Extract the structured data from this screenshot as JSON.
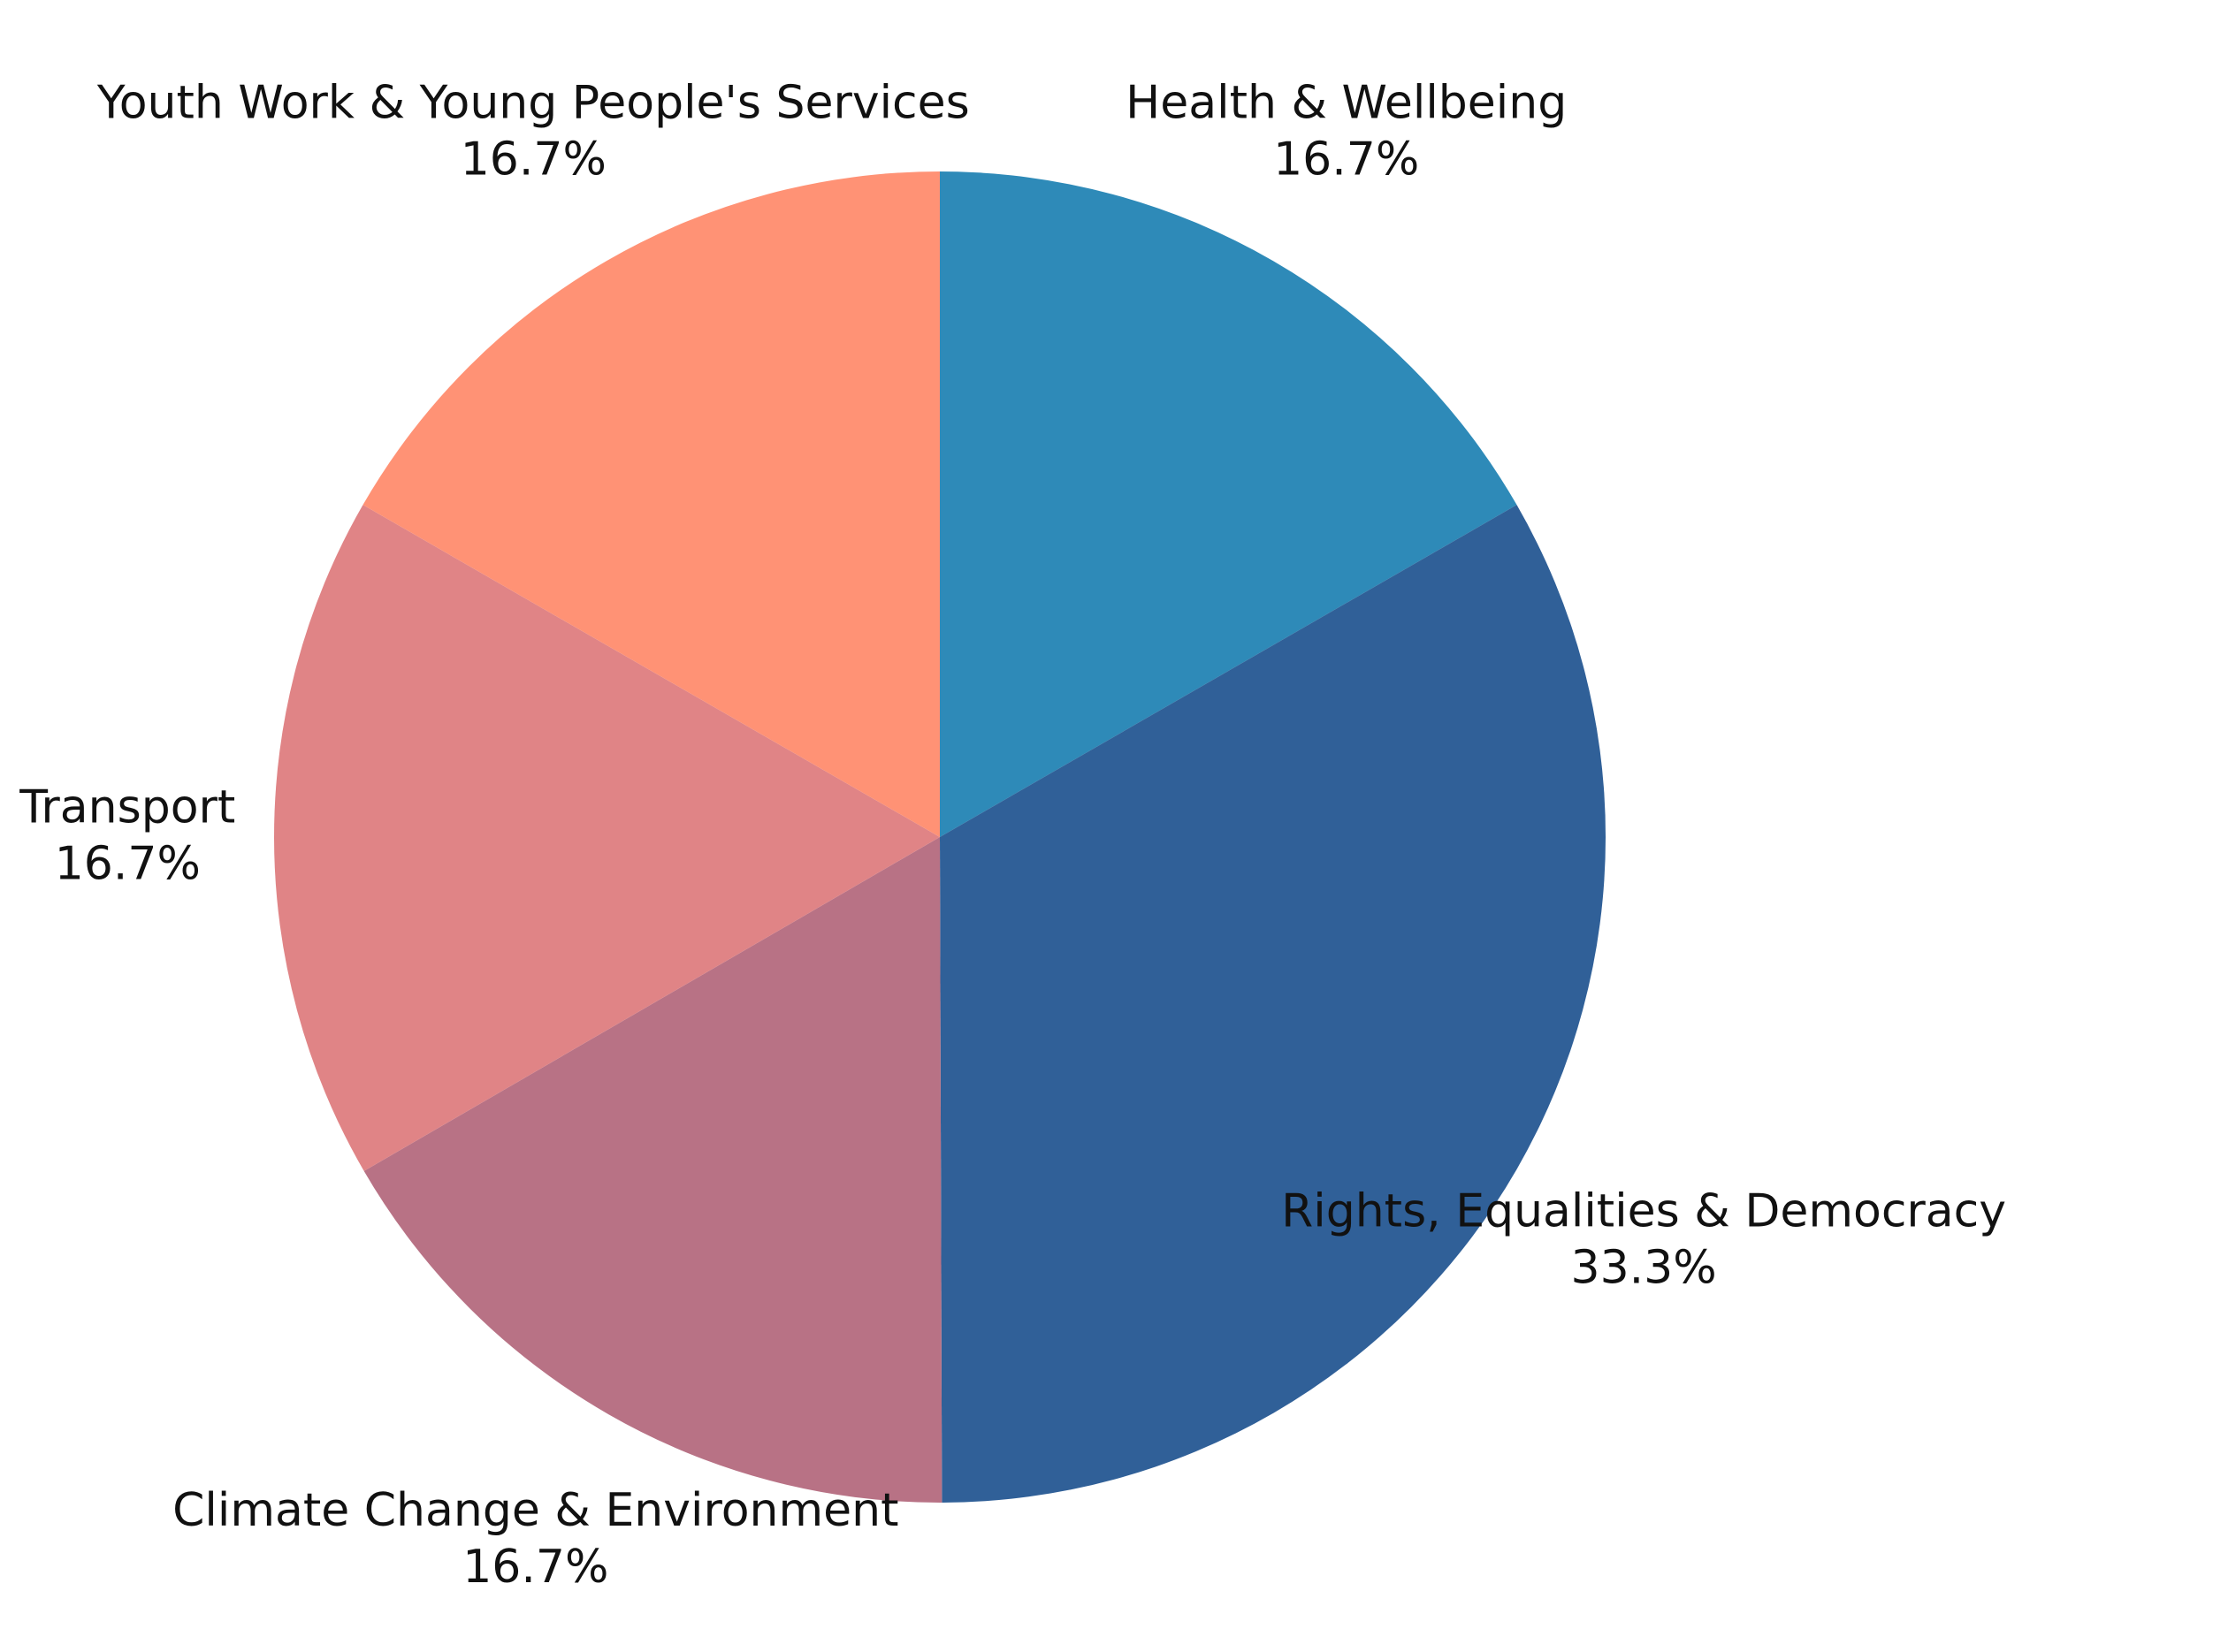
{
  "chart_data": {
    "type": "pie",
    "title": "",
    "start_angle_deg": 90,
    "direction": "clockwise",
    "legend": "none",
    "slices": [
      {
        "label": "Health & Wellbeing",
        "value": 16.7,
        "percent_label": "16.7%",
        "color": "#2E8AB8"
      },
      {
        "label": "Rights, Equalities & Democracy",
        "value": 33.3,
        "percent_label": "33.3%",
        "color": "#306098"
      },
      {
        "label": "Climate Change & Environment",
        "value": 16.7,
        "percent_label": "16.7%",
        "color": "#B87285"
      },
      {
        "label": "Transport",
        "value": 16.7,
        "percent_label": "16.7%",
        "color": "#E08486"
      },
      {
        "label": "Youth Work & Young People's Services",
        "value": 16.7,
        "percent_label": "16.7%",
        "color": "#FF9275"
      }
    ]
  }
}
